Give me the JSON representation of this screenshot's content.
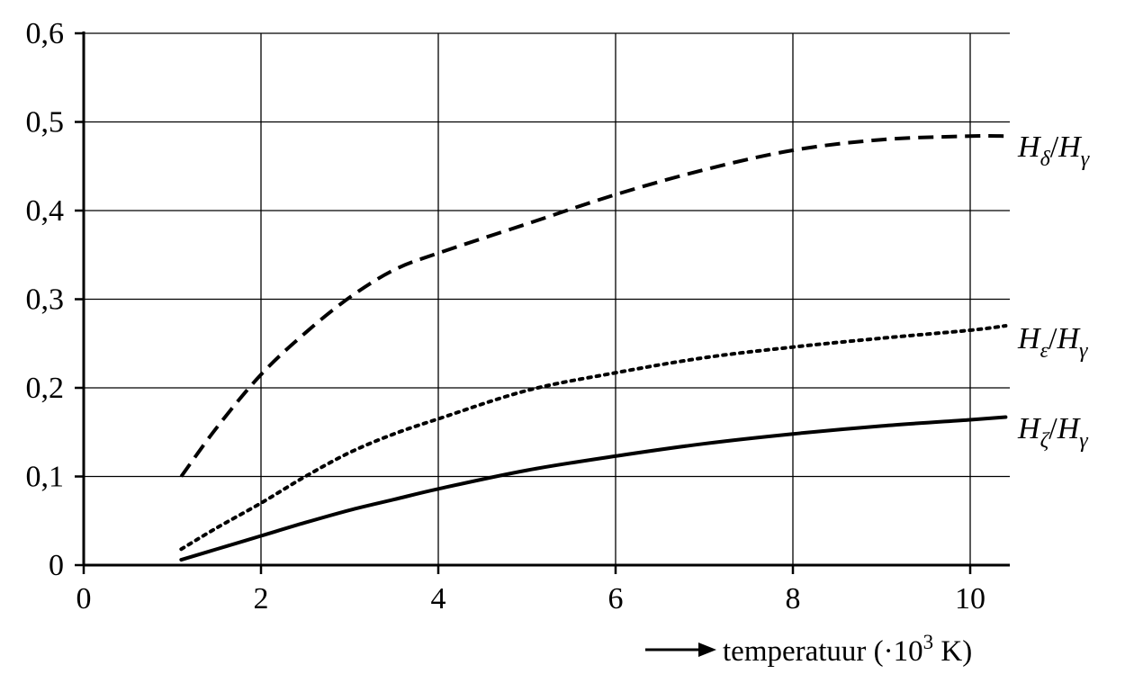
{
  "chart_data": {
    "type": "line",
    "title": "",
    "xlabel": {
      "prefix": "temperatuur (·10",
      "exponent": "3",
      "suffix": " K)"
    },
    "ylabel": "",
    "xlim": [
      0,
      10.4
    ],
    "ylim": [
      0,
      0.6
    ],
    "x_ticks": [
      0,
      2,
      4,
      6,
      8,
      10
    ],
    "x_tick_labels": [
      "0",
      "2",
      "4",
      "6",
      "8",
      "10"
    ],
    "y_ticks": [
      0,
      0.1,
      0.2,
      0.3,
      0.4,
      0.5,
      0.6
    ],
    "y_tick_labels": [
      "0",
      "0,1",
      "0,2",
      "0,3",
      "0,4",
      "0,5",
      "0,6"
    ],
    "grid": true,
    "series": [
      {
        "label": {
          "numerator": "H",
          "numerator_sub": "δ",
          "denominator": "H",
          "denominator_sub": "γ"
        },
        "style": "dashed",
        "x": [
          1.1,
          1.5,
          2.0,
          2.5,
          3.0,
          3.5,
          4.0,
          5.0,
          6.0,
          7.0,
          8.0,
          9.0,
          10.0,
          10.4
        ],
        "y": [
          0.1,
          0.155,
          0.215,
          0.262,
          0.302,
          0.333,
          0.352,
          0.385,
          0.418,
          0.446,
          0.468,
          0.48,
          0.484,
          0.484
        ]
      },
      {
        "label": {
          "numerator": "H",
          "numerator_sub": "ε",
          "denominator": "H",
          "denominator_sub": "γ"
        },
        "style": "dotted",
        "x": [
          1.1,
          1.5,
          2.0,
          2.5,
          3.0,
          3.5,
          4.0,
          5.0,
          6.0,
          7.0,
          8.0,
          9.0,
          10.0,
          10.4
        ],
        "y": [
          0.018,
          0.042,
          0.07,
          0.1,
          0.127,
          0.148,
          0.165,
          0.197,
          0.217,
          0.234,
          0.246,
          0.256,
          0.265,
          0.27
        ]
      },
      {
        "label": {
          "numerator": "H",
          "numerator_sub": "ζ",
          "denominator": "H",
          "denominator_sub": "γ"
        },
        "style": "solid",
        "x": [
          1.1,
          1.5,
          2.0,
          2.5,
          3.0,
          3.5,
          4.0,
          5.0,
          6.0,
          7.0,
          8.0,
          9.0,
          10.0,
          10.4
        ],
        "y": [
          0.006,
          0.018,
          0.033,
          0.048,
          0.062,
          0.074,
          0.086,
          0.107,
          0.123,
          0.137,
          0.148,
          0.157,
          0.164,
          0.167
        ]
      }
    ]
  }
}
